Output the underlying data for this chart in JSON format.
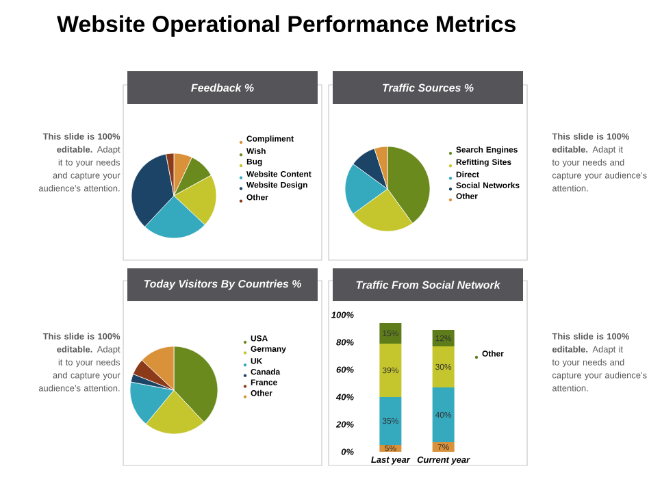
{
  "chart_data": [
    {
      "type": "other",
      "title": "Website Operational Performance Metrics",
      "annotations": [
        "**This slide is 100% editable.** Adapt it to your needs and capture your audience’s attention.",
        "**This slide is 100% editable.** Adapt it to your needs and capture your audience’s attention.",
        "**This slide is 100% editable.** Adapt it to your needs and capture your audience’s attention.",
        "**This slide is 100% editable.** Adapt it to your needs and capture your audience’s attention."
      ]
    },
    {
      "type": "pie",
      "title": "Feedback %",
      "categories": [
        "Compliment",
        "Wish",
        "Bug",
        "Website Content",
        "Website Design",
        "Other"
      ],
      "values": [
        7,
        10,
        20,
        25,
        35,
        3
      ],
      "colors": [
        "#d9913a",
        "#6b8a1e",
        "#c5c52e",
        "#35aabf",
        "#1c4466",
        "#8b3a1a"
      ],
      "legend": "right"
    },
    {
      "type": "pie",
      "title": "Traffic  Sources %",
      "categories": [
        "Search Engines",
        "Refitting Sites",
        "Direct",
        "Social Networks",
        "Other"
      ],
      "values": [
        40,
        25,
        20,
        10,
        5
      ],
      "colors": [
        "#6b8a1e",
        "#c5c52e",
        "#35aabf",
        "#1c4466",
        "#d9913a"
      ],
      "legend": "right"
    },
    {
      "type": "pie",
      "title": "Today  Visitors By Countries %",
      "categories": [
        "USA",
        "Germany",
        "UK",
        "Canada",
        "France",
        "Other"
      ],
      "values": [
        38,
        23,
        17,
        3,
        6,
        13
      ],
      "colors": [
        "#6b8a1e",
        "#c5c52e",
        "#35aabf",
        "#1c4466",
        "#8b3a1a",
        "#d9913a"
      ],
      "legend": "right"
    },
    {
      "type": "bar",
      "title": "Traffic From Social Network",
      "categories": [
        "Last year",
        "Current year"
      ],
      "stacked": true,
      "legend": "right",
      "ylim": [
        0,
        100
      ],
      "yticks": [
        {
          "value": 0,
          "label": "0%"
        },
        {
          "value": 20,
          "label": "20%"
        },
        {
          "value": 40,
          "label": "40%"
        },
        {
          "value": 60,
          "label": "60%"
        },
        {
          "value": 80,
          "label": "80%"
        },
        {
          "value": 100,
          "label": "100%"
        }
      ],
      "series": [
        {
          "color": "#d9913a",
          "values": [
            5,
            7
          ],
          "value_labels": [
            "5%",
            "7%"
          ]
        },
        {
          "color": "#35aabf",
          "values": [
            35,
            40
          ],
          "value_labels": [
            "35%",
            "40%"
          ]
        },
        {
          "color": "#c5c52e",
          "values": [
            39,
            30
          ],
          "value_labels": [
            "39%",
            "30%"
          ]
        },
        {
          "name": "Other",
          "color": "#5e7d1a",
          "values": [
            15,
            12
          ],
          "value_labels": [
            "15%",
            "12%"
          ]
        }
      ]
    }
  ]
}
